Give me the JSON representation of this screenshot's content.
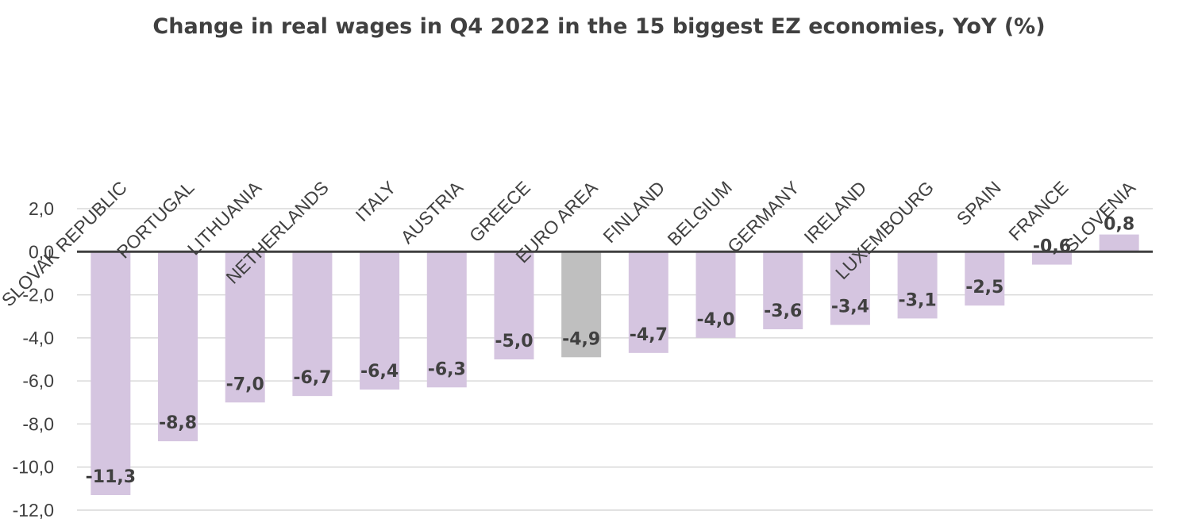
{
  "chart_data": {
    "type": "bar",
    "title": "Change in real wages in Q4 2022 in the 15 biggest EZ economies, YoY (%)",
    "xlabel": "",
    "ylabel": "",
    "categories": [
      "SLOVAK REPUBLIC",
      "PORTUGAL",
      "LITHUANIA",
      "NETHERLANDS",
      "ITALY",
      "AUSTRIA",
      "GREECE",
      "EURO AREA",
      "FINLAND",
      "BELGIUM",
      "GERMANY",
      "IRELAND",
      "LUXEMBOURG",
      "SPAIN",
      "FRANCE",
      "SLOVENIA"
    ],
    "values": [
      -11.3,
      -8.8,
      -7.0,
      -6.7,
      -6.4,
      -6.3,
      -5.0,
      -4.9,
      -4.7,
      -4.0,
      -3.6,
      -3.4,
      -3.1,
      -2.5,
      -0.6,
      0.8
    ],
    "value_labels": [
      "-11,3",
      "-8,8",
      "-7,0",
      "-6,7",
      "-6,4",
      "-6,3",
      "-5,0",
      "-4,9",
      "-4,7",
      "-4,0",
      "-3,6",
      "-3,4",
      "-3,1",
      "-2,5",
      "-0,6",
      "0,8"
    ],
    "ylim": [
      -12,
      2
    ],
    "yticks": [
      2,
      0,
      -2,
      -4,
      -6,
      -8,
      -10,
      -12
    ],
    "ytick_labels": [
      "2,0",
      "0,0",
      "-2,0",
      "-4,0",
      "-6,0",
      "-8,0",
      "-10,0",
      "-12,0"
    ],
    "grid": true,
    "legend": "none",
    "bar_color": "#d5c5e0",
    "highlight_category": "EURO AREA",
    "highlight_color": "#bfbfbf"
  }
}
